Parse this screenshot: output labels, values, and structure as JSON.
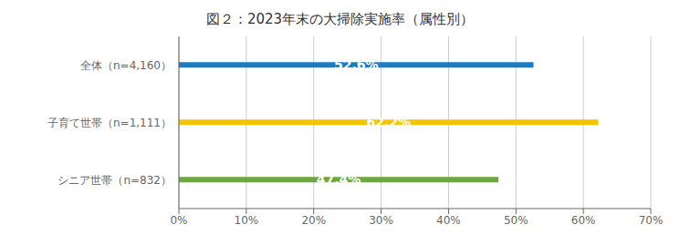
{
  "chart_data": {
    "type": "bar",
    "orientation": "horizontal",
    "title": "図２：2023年末の大掃除実施率（属性別）",
    "categories": [
      "シニア世帯（n=832）",
      "子育て世帯（n=1,111）",
      "全体（n=4,160）"
    ],
    "values": [
      47.4,
      62.2,
      52.6
    ],
    "value_labels": [
      "47.4%",
      "62.2%",
      "52.6%"
    ],
    "colors": [
      "#6aaa3a",
      "#f5c400",
      "#1e7bbf"
    ],
    "xlim": [
      0,
      70
    ],
    "xticks": [
      {
        "value": 0,
        "label": "0%"
      },
      {
        "value": 10,
        "label": "10%"
      },
      {
        "value": 20,
        "label": "20%"
      },
      {
        "value": 30,
        "label": "30%"
      },
      {
        "value": 40,
        "label": "40%"
      },
      {
        "value": 50,
        "label": "50%"
      },
      {
        "value": 60,
        "label": "60%"
      },
      {
        "value": 70,
        "label": "70%"
      }
    ],
    "grid": true,
    "data_labels": true
  }
}
